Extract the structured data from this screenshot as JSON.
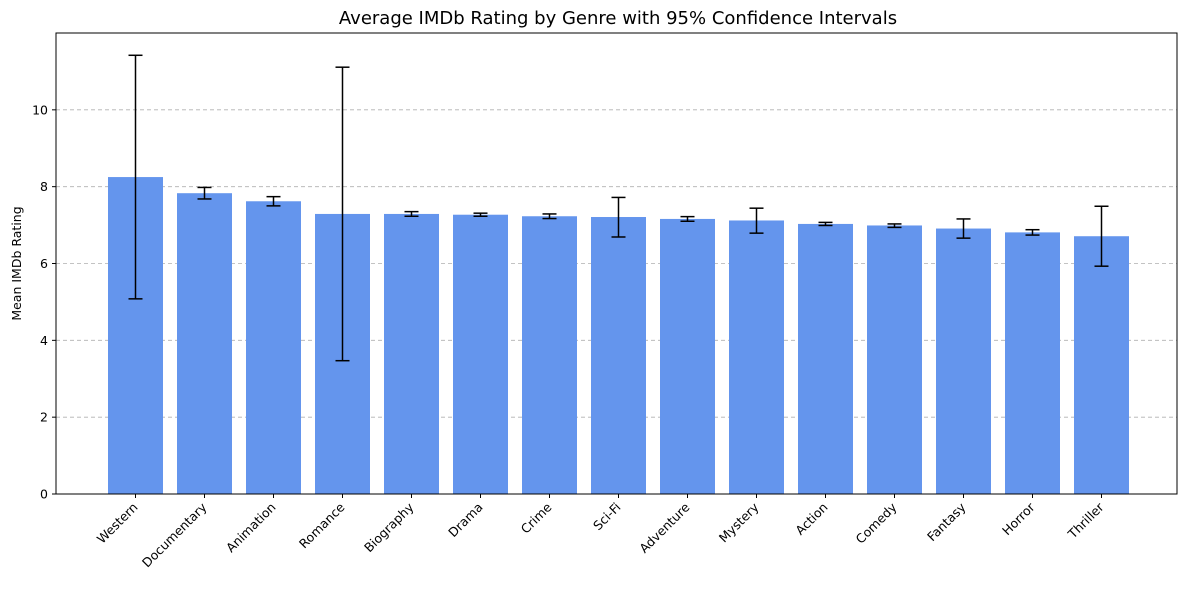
{
  "chart_data": {
    "type": "bar",
    "title": "Average IMDb Rating by Genre with 95% Confidence Intervals",
    "xlabel": "",
    "ylabel": "Mean IMDb Rating",
    "ylim": [
      0,
      12
    ],
    "yticks": [
      0,
      2,
      4,
      6,
      8,
      10
    ],
    "grid": "y, dashed",
    "bar_color": "#6495ED",
    "errorbar_color": "#000000",
    "grid_color": "#b0b0b0",
    "categories": [
      "Western",
      "Documentary",
      "Animation",
      "Romance",
      "Biography",
      "Drama",
      "Crime",
      "Sci-Fi",
      "Adventure",
      "Mystery",
      "Action",
      "Comedy",
      "Fantasy",
      "Horror",
      "Thriller"
    ],
    "values": [
      8.25,
      7.83,
      7.62,
      7.29,
      7.29,
      7.27,
      7.23,
      7.21,
      7.16,
      7.12,
      7.03,
      6.99,
      6.91,
      6.81,
      6.71
    ],
    "ci_low": [
      5.08,
      7.68,
      7.5,
      3.47,
      7.23,
      7.23,
      7.17,
      6.69,
      7.1,
      6.79,
      6.99,
      6.94,
      6.66,
      6.74,
      5.93
    ],
    "ci_high": [
      11.42,
      7.98,
      7.74,
      11.11,
      7.35,
      7.31,
      7.29,
      7.72,
      7.22,
      7.44,
      7.07,
      7.03,
      7.16,
      6.88,
      7.49
    ]
  }
}
